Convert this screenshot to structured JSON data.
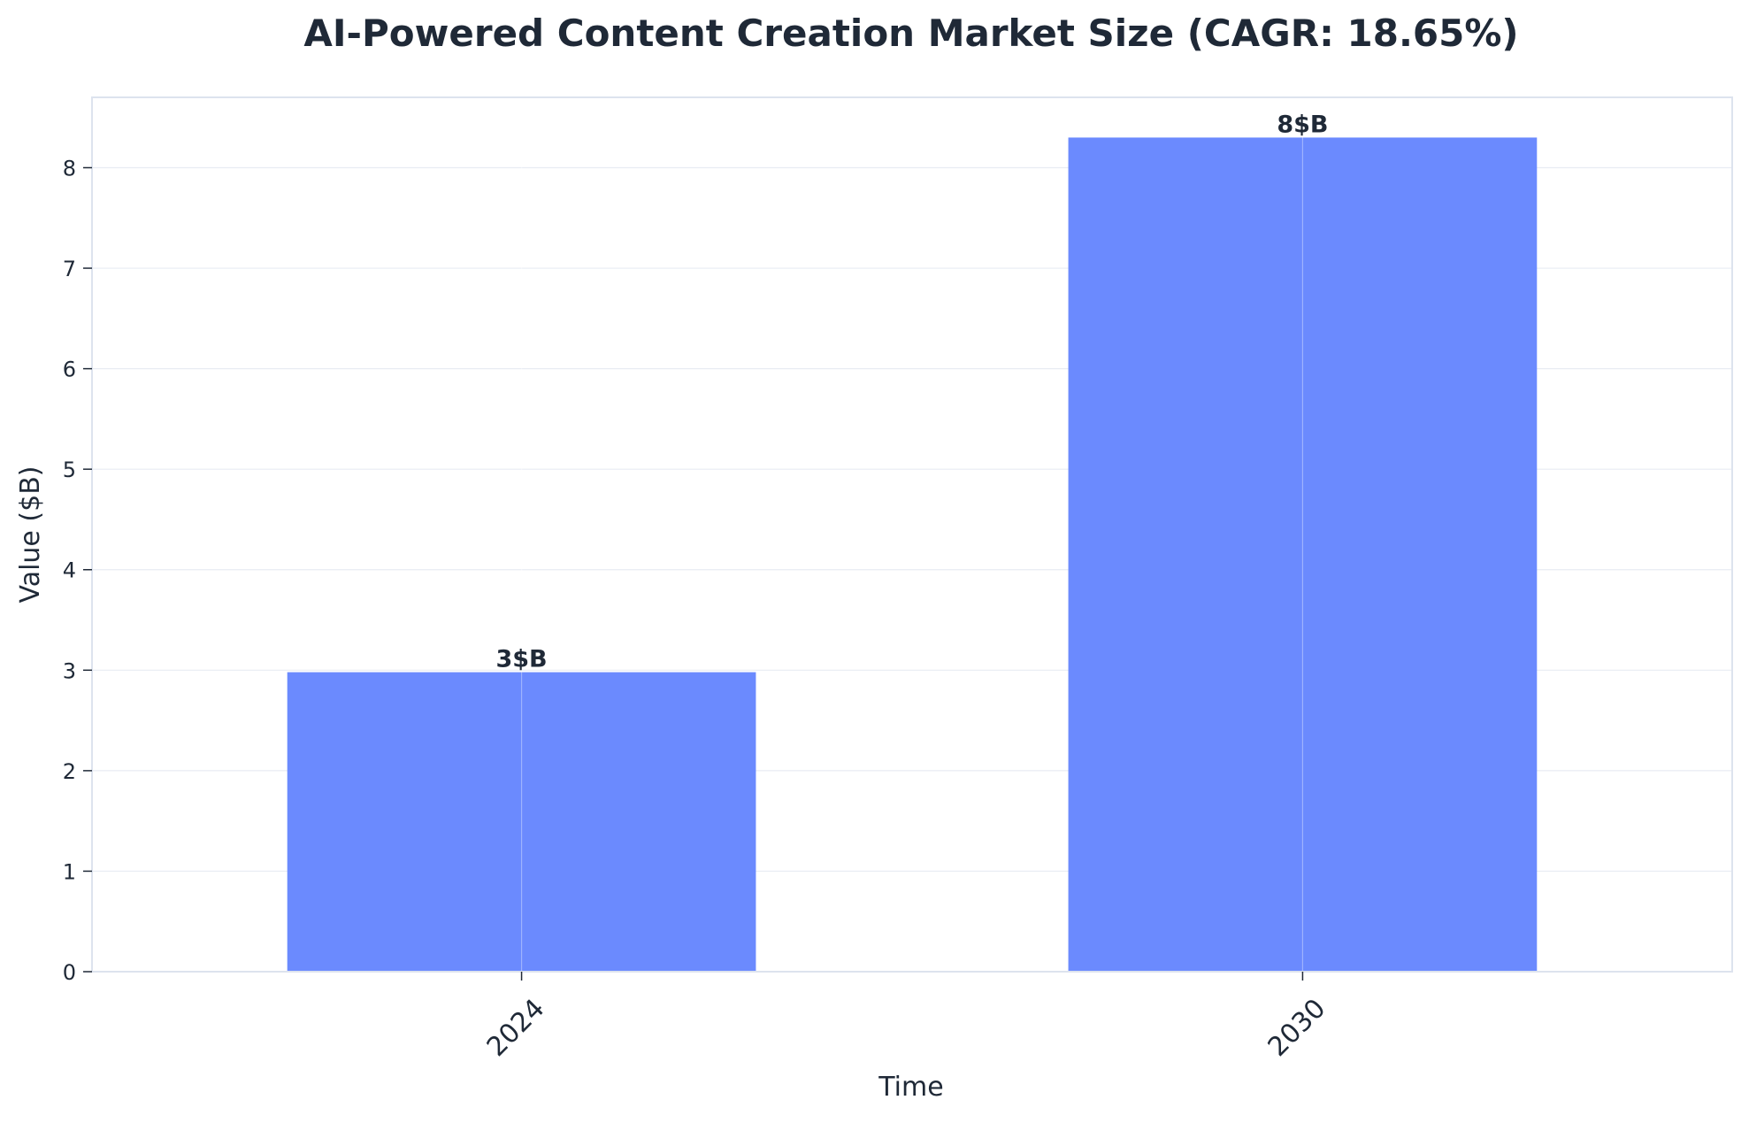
{
  "chart_data": {
    "type": "bar",
    "title": "AI-Powered Content Creation Market Size (CAGR: 18.65%)",
    "xlabel": "Time",
    "ylabel": "Value ($B)",
    "categories": [
      "2024",
      "2030"
    ],
    "values": [
      2.98,
      8.3
    ],
    "data_labels": [
      "3$B",
      "8$B"
    ],
    "ylim": [
      0,
      8.7
    ],
    "yticks": [
      0,
      1,
      2,
      3,
      4,
      5,
      6,
      7,
      8
    ],
    "grid": true,
    "legend": "none",
    "colors": {
      "bar": "#6b8afe",
      "text": "#1f2937",
      "frame": "#dde3ee",
      "grid": "#e8ecf3"
    }
  }
}
